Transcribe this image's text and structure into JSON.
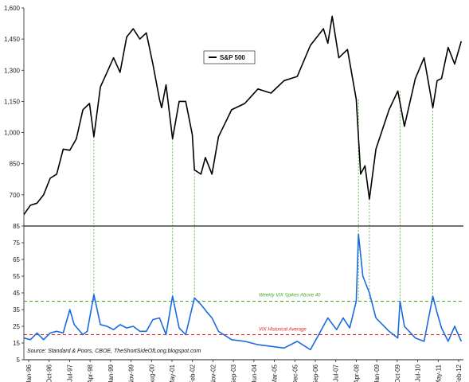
{
  "chart_data": [
    {
      "type": "line",
      "series": [
        {
          "name": "S&P 500",
          "color": "#000000",
          "points": [
            [
              "1996-01",
              605
            ],
            [
              "1996-04",
              650
            ],
            [
              "1996-07",
              660
            ],
            [
              "1996-10",
              700
            ],
            [
              "1997-01",
              780
            ],
            [
              "1997-04",
              800
            ],
            [
              "1997-07",
              920
            ],
            [
              "1997-10",
              915
            ],
            [
              "1998-01",
              970
            ],
            [
              "1998-04",
              1110
            ],
            [
              "1998-07",
              1140
            ],
            [
              "1998-09",
              980
            ],
            [
              "1998-12",
              1220
            ],
            [
              "1999-03",
              1290
            ],
            [
              "1999-06",
              1360
            ],
            [
              "1999-09",
              1290
            ],
            [
              "1999-12",
              1460
            ],
            [
              "2000-03",
              1500
            ],
            [
              "2000-06",
              1450
            ],
            [
              "2000-09",
              1480
            ],
            [
              "2000-12",
              1330
            ],
            [
              "2001-03",
              1160
            ],
            [
              "2001-04",
              1120
            ],
            [
              "2001-06",
              1230
            ],
            [
              "2001-09",
              970
            ],
            [
              "2001-12",
              1150
            ],
            [
              "2002-03",
              1150
            ],
            [
              "2002-06",
              990
            ],
            [
              "2002-07",
              820
            ],
            [
              "2002-10",
              800
            ],
            [
              "2002-12",
              880
            ],
            [
              "2003-03",
              800
            ],
            [
              "2003-06",
              980
            ],
            [
              "2003-12",
              1110
            ],
            [
              "2004-06",
              1140
            ],
            [
              "2004-12",
              1210
            ],
            [
              "2005-06",
              1190
            ],
            [
              "2005-12",
              1250
            ],
            [
              "2006-06",
              1270
            ],
            [
              "2006-12",
              1420
            ],
            [
              "2007-06",
              1500
            ],
            [
              "2007-08",
              1430
            ],
            [
              "2007-10",
              1560
            ],
            [
              "2008-01",
              1360
            ],
            [
              "2008-05",
              1400
            ],
            [
              "2008-09",
              1160
            ],
            [
              "2008-11",
              800
            ],
            [
              "2009-01",
              840
            ],
            [
              "2009-03",
              680
            ],
            [
              "2009-06",
              920
            ],
            [
              "2009-12",
              1110
            ],
            [
              "2010-04",
              1200
            ],
            [
              "2010-07",
              1030
            ],
            [
              "2010-12",
              1260
            ],
            [
              "2011-04",
              1360
            ],
            [
              "2011-08",
              1120
            ],
            [
              "2011-10",
              1250
            ],
            [
              "2011-12",
              1260
            ],
            [
              "2012-03",
              1410
            ],
            [
              "2012-06",
              1330
            ],
            [
              "2012-09",
              1440
            ]
          ]
        }
      ],
      "ylim": [
        550,
        1600
      ],
      "yticks": [
        "700",
        "850",
        "1,000",
        "1,150",
        "1,300",
        "1,450",
        "1,600"
      ],
      "legend": {
        "label": "S&P 500",
        "placement": "top-center"
      }
    },
    {
      "type": "line",
      "series": [
        {
          "name": "VIX",
          "color": "#1a6be0",
          "points": [
            [
              "1996-01",
              18
            ],
            [
              "1996-04",
              17
            ],
            [
              "1996-07",
              21
            ],
            [
              "1996-10",
              17
            ],
            [
              "1997-01",
              21
            ],
            [
              "1997-04",
              22
            ],
            [
              "1997-07",
              21
            ],
            [
              "1997-10",
              35
            ],
            [
              "1997-12",
              26
            ],
            [
              "1998-04",
              20
            ],
            [
              "1998-06",
              22
            ],
            [
              "1998-09",
              44
            ],
            [
              "1998-12",
              26
            ],
            [
              "1999-03",
              25
            ],
            [
              "1999-06",
              23
            ],
            [
              "1999-09",
              26
            ],
            [
              "1999-12",
              24
            ],
            [
              "2000-03",
              25
            ],
            [
              "2000-06",
              22
            ],
            [
              "2000-09",
              22
            ],
            [
              "2000-12",
              29
            ],
            [
              "2001-03",
              30
            ],
            [
              "2001-06",
              20
            ],
            [
              "2001-09",
              43
            ],
            [
              "2001-12",
              24
            ],
            [
              "2002-03",
              20
            ],
            [
              "2002-07",
              42
            ],
            [
              "2002-10",
              38
            ],
            [
              "2003-01",
              33
            ],
            [
              "2003-03",
              30
            ],
            [
              "2003-06",
              22
            ],
            [
              "2003-12",
              17
            ],
            [
              "2004-06",
              16
            ],
            [
              "2004-12",
              14
            ],
            [
              "2005-06",
              13
            ],
            [
              "2005-12",
              12
            ],
            [
              "2006-06",
              16
            ],
            [
              "2006-12",
              11
            ],
            [
              "2007-03",
              18
            ],
            [
              "2007-08",
              30
            ],
            [
              "2007-12",
              23
            ],
            [
              "2008-03",
              30
            ],
            [
              "2008-06",
              24
            ],
            [
              "2008-09",
              40
            ],
            [
              "2008-10",
              80
            ],
            [
              "2008-12",
              55
            ],
            [
              "2009-03",
              45
            ],
            [
              "2009-06",
              30
            ],
            [
              "2009-12",
              22
            ],
            [
              "2010-04",
              18
            ],
            [
              "2010-05",
              40
            ],
            [
              "2010-07",
              25
            ],
            [
              "2010-12",
              18
            ],
            [
              "2011-04",
              16
            ],
            [
              "2011-08",
              43
            ],
            [
              "2011-10",
              33
            ],
            [
              "2011-12",
              24
            ],
            [
              "2012-03",
              16
            ],
            [
              "2012-06",
              25
            ],
            [
              "2012-09",
              16
            ]
          ]
        }
      ],
      "ylim": [
        5,
        85
      ],
      "yticks": [
        "5",
        "15",
        "25",
        "35",
        "45",
        "55",
        "65",
        "75",
        "85"
      ],
      "xticks": [
        "Jan-96",
        "Oct-96",
        "Jul-97",
        "Apr-98",
        "Jan-99",
        "Nov-99",
        "Aug-00",
        "May-01",
        "Feb-02",
        "Nov-02",
        "Sep-03",
        "Jun-04",
        "Mar-05",
        "Dec-05",
        "Sep-06",
        "Jul-07",
        "Apr-08",
        "Jan-09",
        "Oct-09",
        "Jul-10",
        "May-11",
        "Feb-12"
      ],
      "reference_lines": [
        {
          "value": 40,
          "label": "Weekly VIX Spikes Above 40",
          "color": "#44aa22"
        },
        {
          "value": 20,
          "label": "VIX Historical Average",
          "color": "#dd2222"
        }
      ],
      "source": "Source: Standard & Poors, CBOE, TheShortSideOfLong.blogspot.com"
    }
  ],
  "spike_markers": [
    "1998-09",
    "2001-09",
    "2002-07",
    "2008-10",
    "2009-03",
    "2010-05",
    "2011-08"
  ],
  "colors": {
    "sp500": "#000000",
    "vix": "#1a6be0",
    "spike_guides": "#44aa22",
    "average": "#dd2222"
  }
}
